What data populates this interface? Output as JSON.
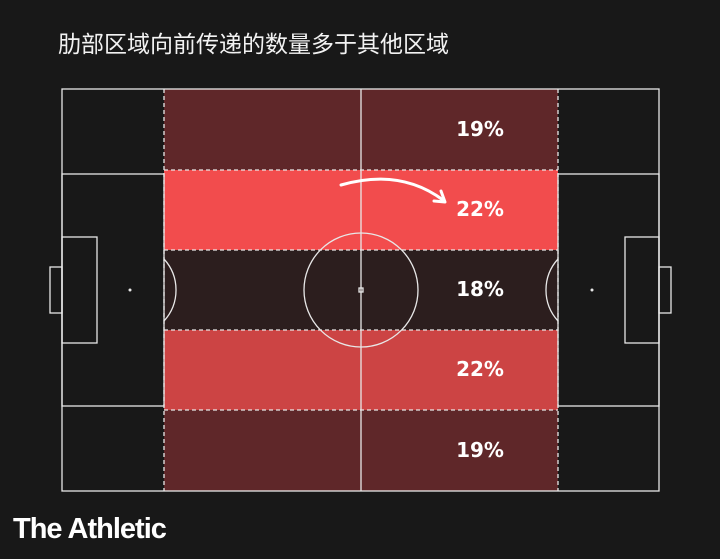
{
  "title": "肋部区域向前传递的数量多于其他区域",
  "zones": [
    {
      "label": "19%",
      "color": "#5f2729"
    },
    {
      "label": "22%",
      "color": "#f24c4d"
    },
    {
      "label": "18%",
      "color": "#2c1e1e"
    },
    {
      "label": "22%",
      "color": "#cc4444"
    },
    {
      "label": "19%",
      "color": "#5f2729"
    }
  ],
  "highlight_arrow": "curved-arrow-icon",
  "logo": "The Athletic"
}
